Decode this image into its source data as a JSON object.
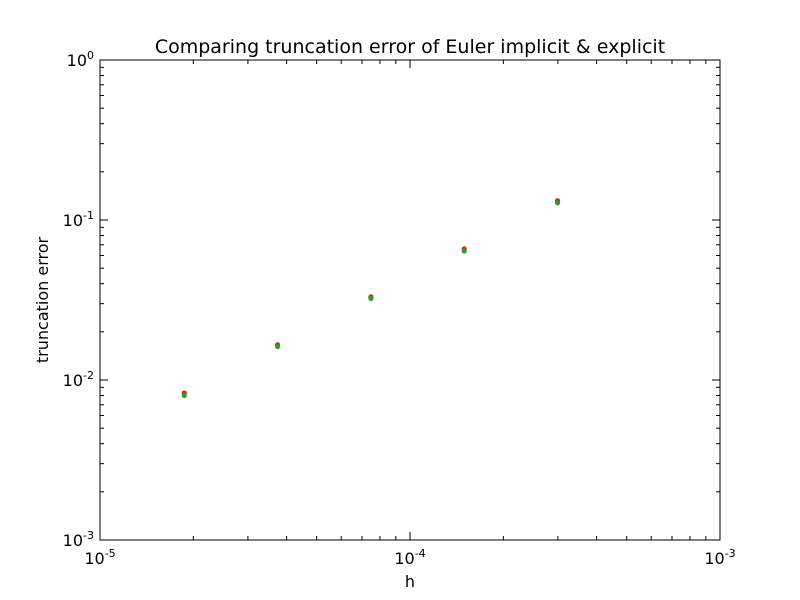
{
  "chart_data": {
    "type": "scatter",
    "title": "Comparing truncation error of Euler implicit & explicit",
    "xlabel": "h",
    "ylabel": "truncation error",
    "xscale": "log",
    "yscale": "log",
    "xlim": [
      1e-05,
      0.001
    ],
    "ylim": [
      0.001,
      1
    ],
    "grid": false,
    "x_ticks": [
      {
        "base": "10",
        "exp": "-5",
        "value": 1e-05
      },
      {
        "base": "10",
        "exp": "-4",
        "value": 0.0001
      },
      {
        "base": "10",
        "exp": "-3",
        "value": 0.001
      }
    ],
    "y_ticks": [
      {
        "base": "10",
        "exp": "-3",
        "value": 0.001
      },
      {
        "base": "10",
        "exp": "-2",
        "value": 0.01
      },
      {
        "base": "10",
        "exp": "-1",
        "value": 0.1
      },
      {
        "base": "10",
        "exp": "0",
        "value": 1
      }
    ],
    "series": [
      {
        "color": "#d62728",
        "x": [
          1.87e-05,
          3.74e-05,
          7.48e-05,
          0.0001496,
          0.0002992
        ],
        "y": [
          0.0083,
          0.0166,
          0.0331,
          0.066,
          0.132
        ]
      },
      {
        "color": "#2ca02c",
        "x": [
          1.87e-05,
          3.74e-05,
          7.48e-05,
          0.0001496,
          0.0002992
        ],
        "y": [
          0.008,
          0.0162,
          0.0323,
          0.064,
          0.128
        ]
      }
    ]
  }
}
